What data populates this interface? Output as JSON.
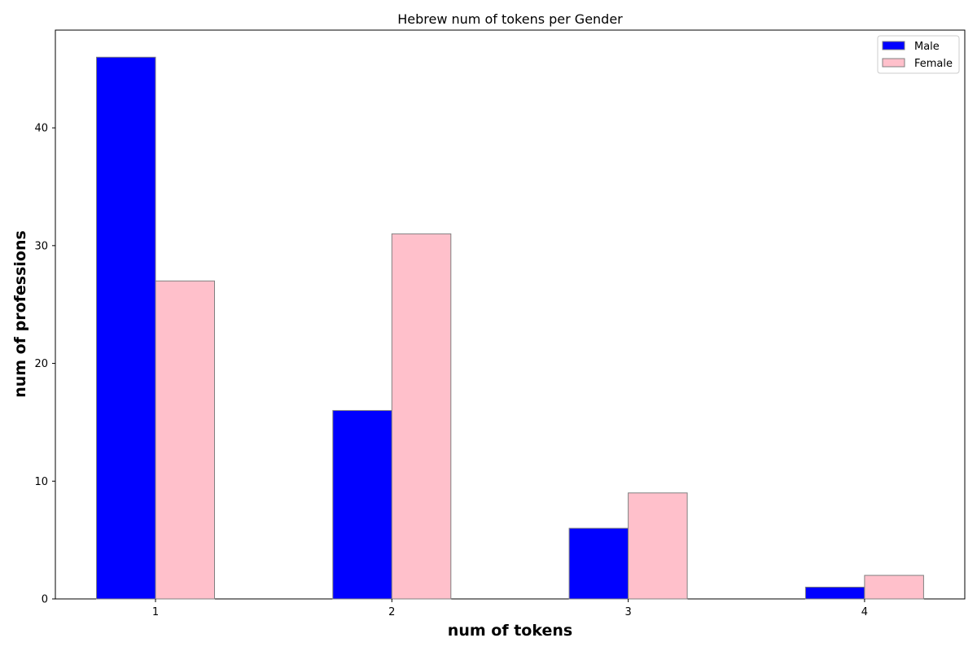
{
  "chart_data": {
    "type": "bar",
    "title": "Hebrew num of tokens per Gender",
    "xlabel": "num of tokens",
    "ylabel": "num of professions",
    "categories": [
      "1",
      "2",
      "3",
      "4"
    ],
    "series": [
      {
        "name": "Male",
        "values": [
          46,
          16,
          6,
          1
        ],
        "color": "#0000ff"
      },
      {
        "name": "Female",
        "values": [
          27,
          31,
          9,
          2
        ],
        "color": "#ffc0cb"
      }
    ],
    "ylim": [
      0,
      48.3
    ],
    "yticks": [
      0,
      10,
      20,
      30,
      40
    ],
    "ytick_labels": [
      "0",
      "10",
      "20",
      "30",
      "40"
    ],
    "bar_edge_color": "#808080",
    "grid": false,
    "legend_position": "top-right"
  }
}
